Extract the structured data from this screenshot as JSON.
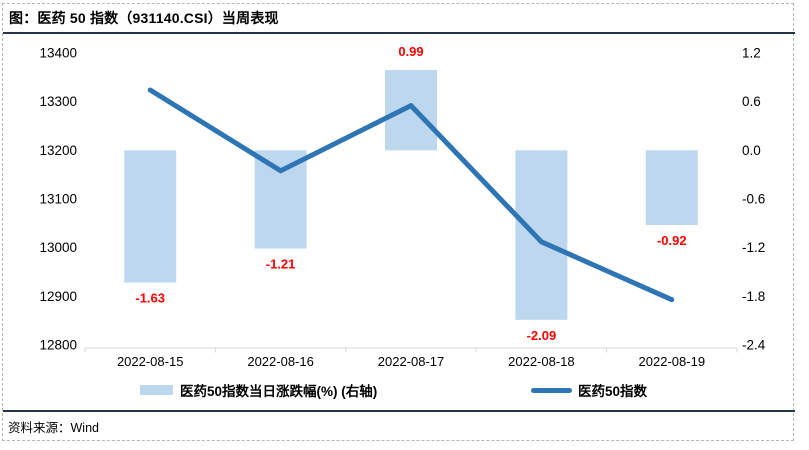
{
  "title": "图：医药 50 指数（931140.CSI）当周表现",
  "source": {
    "label": "资料来源：Wind"
  },
  "colors": {
    "bar_fill": "#BDD7EE",
    "line_stroke": "#2E75B6",
    "value_label": "#FF0000",
    "axis_line": "#d9d9d9",
    "rule": "#263248",
    "text": "#000000"
  },
  "legend": {
    "items": [
      {
        "label": "医药50指数当日涨跌幅(%) (右轴)",
        "marker": "bar-swatch",
        "color": "#BDD7EE"
      },
      {
        "label": "医药50指数",
        "marker": "line-swatch",
        "color": "#2E75B6"
      }
    ]
  },
  "chart_data": {
    "type": "bar",
    "subtype": "combo-bar-line",
    "title": "图：医药 50 指数（931140.CSI）当周表现",
    "categories": [
      "2022-08-15",
      "2022-08-16",
      "2022-08-17",
      "2022-08-18",
      "2022-08-19"
    ],
    "series": [
      {
        "name": "医药50指数当日涨跌幅(%) (右轴)",
        "type": "bar",
        "axis": "right",
        "color": "#BDD7EE",
        "values": [
          -1.63,
          -1.21,
          0.99,
          -2.09,
          -0.92
        ],
        "labels": [
          "-1.63",
          "-1.21",
          "0.99",
          "-2.09",
          "-0.92"
        ],
        "label_color": "#FF0000"
      },
      {
        "name": "医药50指数",
        "type": "line",
        "axis": "left",
        "color": "#2E75B6",
        "values": [
          13324,
          13158,
          13292,
          13012,
          12893
        ]
      }
    ],
    "left_axis": {
      "min": 12800,
      "max": 13400,
      "tick_labels": [
        "13400",
        "13300",
        "13200",
        "13100",
        "13000",
        "12900",
        "12800"
      ],
      "ticks": [
        13400,
        13300,
        13200,
        13100,
        13000,
        12900,
        12800
      ]
    },
    "right_axis": {
      "min": -2.4,
      "max": 1.2,
      "tick_labels": [
        "1.2",
        "0.6",
        "0.0",
        "-0.6",
        "-1.2",
        "-1.8",
        "-2.4"
      ],
      "ticks": [
        1.2,
        0.6,
        0.0,
        -0.6,
        -1.2,
        -1.8,
        -2.4
      ]
    },
    "grid": false,
    "legend_position": "bottom",
    "xlabel": "",
    "ylabel_left": "",
    "ylabel_right": ""
  }
}
